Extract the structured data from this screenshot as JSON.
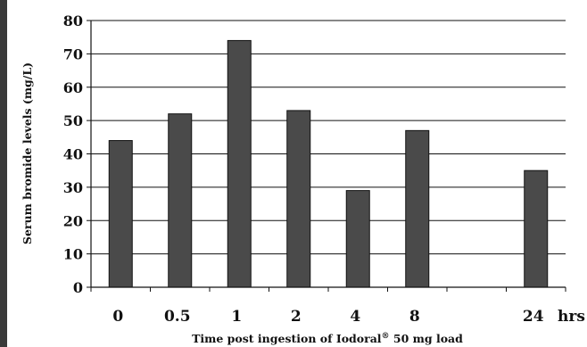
{
  "chart_data": {
    "type": "bar",
    "categories": [
      "0",
      "0.5",
      "1",
      "2",
      "4",
      "8",
      "",
      "24"
    ],
    "x_unit": "hrs",
    "values": [
      44,
      52,
      74,
      53,
      29,
      47,
      null,
      35
    ],
    "xlabel_prefix": "Time post ingestion of Iodoral",
    "xlabel_mark": "®",
    "xlabel_suffix": " 50 mg load",
    "ylabel": "Serum bromide levels  (mg/L)",
    "ylim": [
      0,
      80
    ],
    "yticks": [
      0,
      10,
      20,
      30,
      40,
      50,
      60,
      70,
      80
    ],
    "grid": true
  },
  "colors": {
    "bar_fill": "#4a4a4a",
    "bar_stroke": "#111111",
    "grid": "#111111",
    "edge_bar": "#3a3a3a"
  }
}
